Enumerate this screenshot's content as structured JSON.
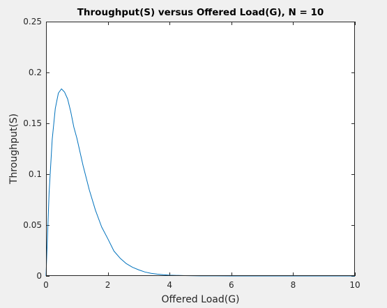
{
  "chart_data": {
    "type": "line",
    "title": "Throughput(S) versus Offered Load(G), N = 10",
    "xlabel": "Offered Load(G)",
    "ylabel": "Throughput(S)",
    "xlim": [
      0,
      10
    ],
    "ylim": [
      0,
      0.25
    ],
    "xticks": [
      0,
      2,
      4,
      6,
      8,
      10
    ],
    "xtick_labels": [
      "0",
      "2",
      "4",
      "6",
      "8",
      "10"
    ],
    "yticks": [
      0,
      0.05,
      0.1,
      0.15,
      0.2,
      0.25
    ],
    "ytick_labels": [
      "0",
      "0.05",
      "0.1",
      "0.15",
      "0.2",
      "0.25"
    ],
    "grid": false,
    "series": [
      {
        "color": "#0072bd",
        "x": [
          0,
          0.1,
          0.2,
          0.3,
          0.4,
          0.5,
          0.6,
          0.7,
          0.8,
          0.9,
          1.0,
          1.2,
          1.4,
          1.6,
          1.8,
          2.0,
          2.2,
          2.4,
          2.6,
          2.8,
          3.0,
          3.2,
          3.4,
          3.6,
          3.8,
          4.0,
          4.5,
          5.0,
          5.5,
          6.0,
          7.0,
          8.0,
          9.0,
          10.0
        ],
        "y": [
          0,
          0.0819,
          0.1341,
          0.1646,
          0.1797,
          0.1839,
          0.1807,
          0.1739,
          0.1615,
          0.1463,
          0.1353,
          0.1084,
          0.0847,
          0.0646,
          0.0482,
          0.0366,
          0.0244,
          0.0174,
          0.0121,
          0.0085,
          0.006,
          0.0039,
          0.0026,
          0.0018,
          0.0012,
          0.0008,
          0.0003,
          0.0001,
          5e-05,
          2e-05,
          0,
          0,
          0,
          0
        ]
      }
    ]
  },
  "colors": {
    "figure_background": "#f0f0f0",
    "axes_background": "#ffffff",
    "axis_color": "#262626",
    "line_color": "#0072bd"
  }
}
